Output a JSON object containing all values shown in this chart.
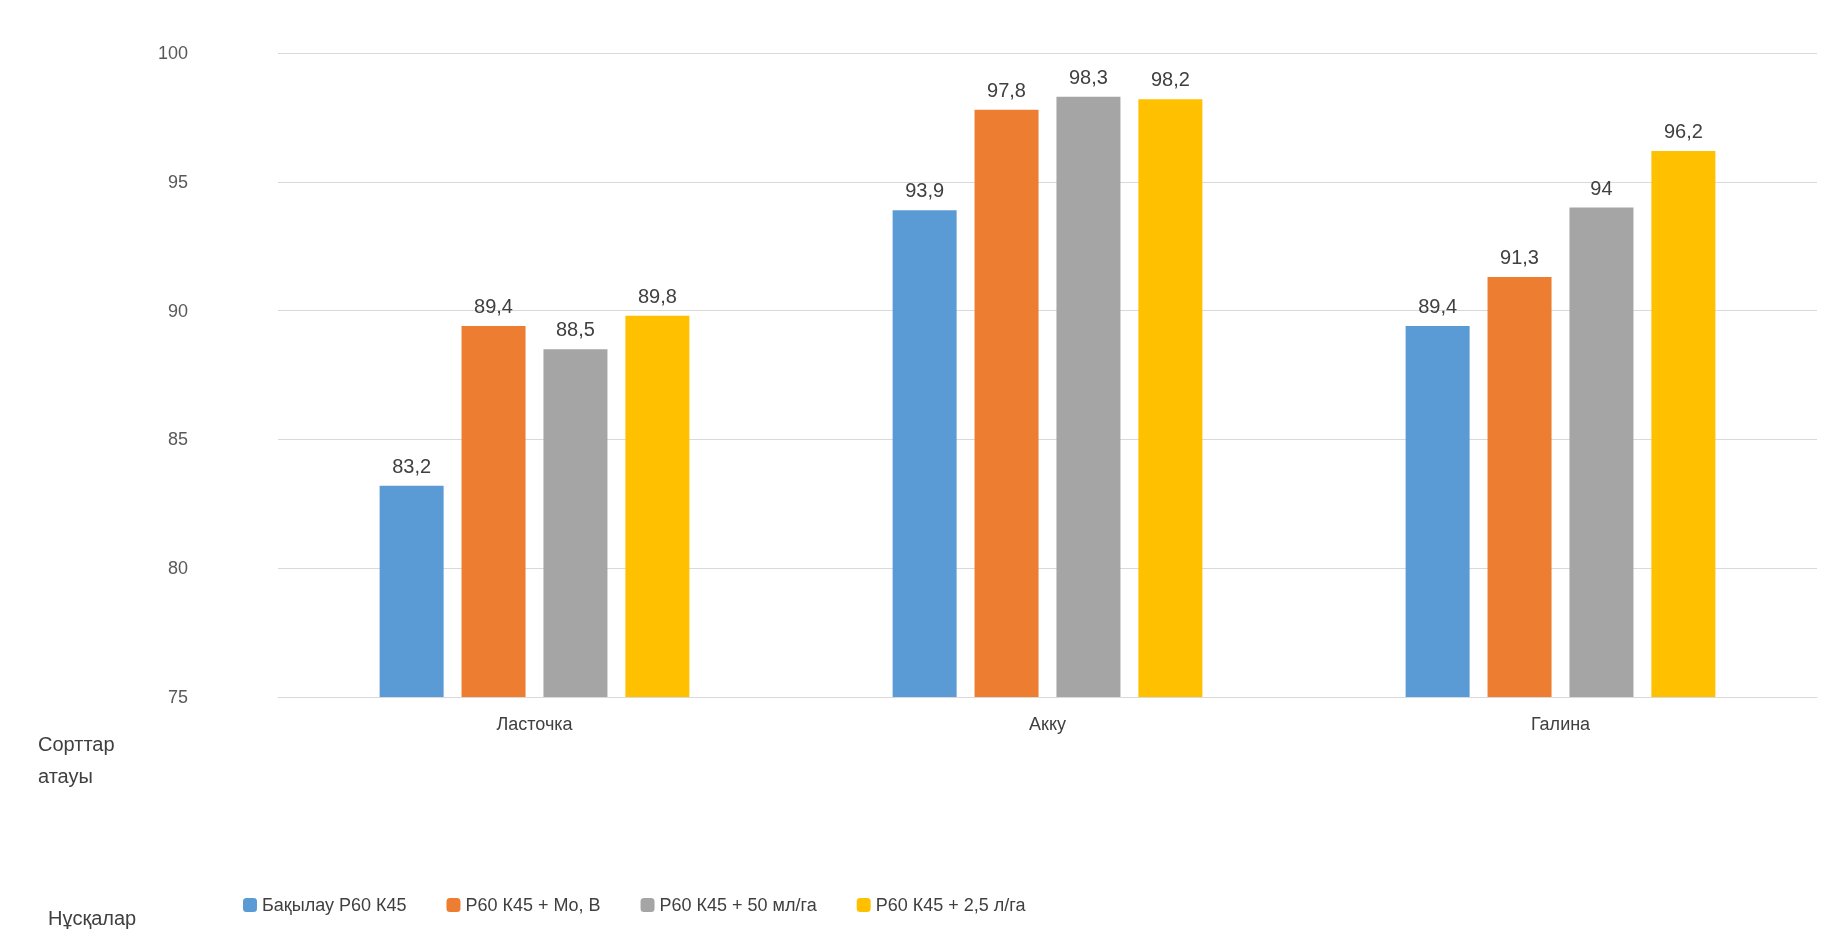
{
  "chart_data": {
    "type": "bar",
    "xlabel": "Сорттар атауы",
    "legend_title": "Нұсқалар",
    "categories": [
      "Ласточка",
      "Акку",
      "Галина"
    ],
    "series": [
      {
        "name": "Бақылау Р60 К45",
        "color": "#5b9bd5",
        "values": [
          83.2,
          93.9,
          89.4
        ],
        "value_labels": [
          "83,2",
          "93,9",
          "89,4"
        ]
      },
      {
        "name": "Р60 К45 + Mo, B",
        "color": "#ed7d31",
        "values": [
          89.4,
          97.8,
          91.3
        ],
        "value_labels": [
          "89,4",
          "97,8",
          "91,3"
        ]
      },
      {
        "name": "Р60 К45 + 50 мл/га",
        "color": "#a5a5a5",
        "values": [
          88.5,
          98.3,
          94
        ],
        "value_labels": [
          "88,5",
          "98,3",
          "94"
        ]
      },
      {
        "name": "Р60 К45 + 2,5 л/га",
        "color": "#ffc000",
        "values": [
          89.8,
          98.2,
          96.2
        ],
        "value_labels": [
          "89,8",
          "98,2",
          "96,2"
        ]
      }
    ],
    "ylim": [
      75,
      100
    ],
    "yticks": [
      75,
      80,
      85,
      90,
      95,
      100
    ],
    "grid": "y",
    "legend": "bottom"
  }
}
